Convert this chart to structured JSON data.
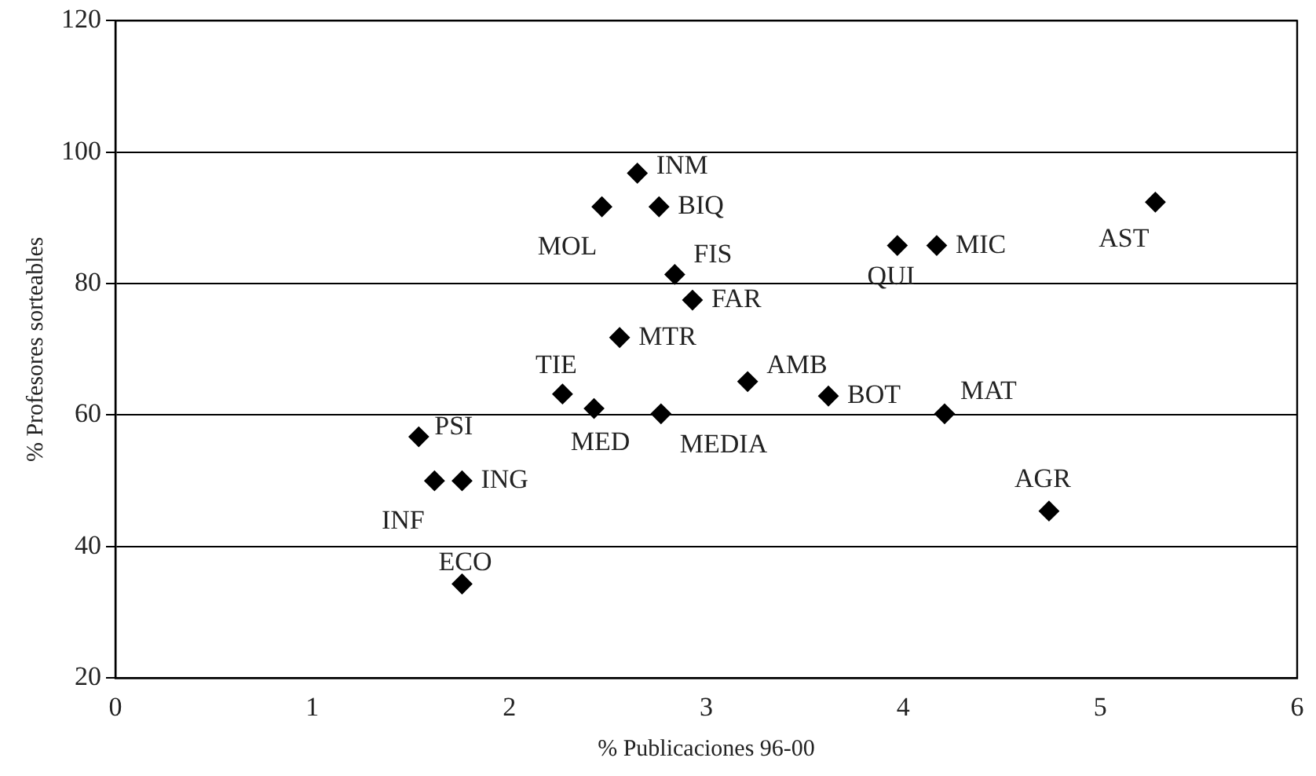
{
  "chart_data": {
    "type": "scatter",
    "xlabel": "% Publicaciones 96-00",
    "ylabel": "% Profesores sorteables",
    "xlim": [
      0,
      6
    ],
    "xticks": [
      0,
      1,
      2,
      3,
      4,
      5,
      6
    ],
    "ylim": [
      20,
      120
    ],
    "yticks": [
      20,
      40,
      60,
      80,
      100,
      120
    ],
    "grid": "y",
    "marker": "diamond",
    "legend": false,
    "series": [
      {
        "color": "#000000",
        "x": [
          2.47,
          2.76,
          2.65,
          2.84,
          2.93,
          2.56,
          2.27,
          2.43,
          2.77,
          3.21,
          3.62,
          3.97,
          4.17,
          5.28,
          4.21,
          4.74,
          1.54,
          1.62,
          1.76,
          1.76
        ],
        "values": [
          91.7,
          91.7,
          96.8,
          81.4,
          77.5,
          71.8,
          63.2,
          61.0,
          60.2,
          65.1,
          62.9,
          85.8,
          85.8,
          92.4,
          60.2,
          45.4,
          56.7,
          50.0,
          50.0,
          34.3
        ]
      }
    ],
    "annotations": [
      {
        "text": "MOL",
        "x": 2.47,
        "y": 91.7
      },
      {
        "text": "BIQ",
        "x": 2.76,
        "y": 91.7
      },
      {
        "text": "INM",
        "x": 2.65,
        "y": 96.8
      },
      {
        "text": "FIS",
        "x": 2.84,
        "y": 81.4
      },
      {
        "text": "FAR",
        "x": 2.93,
        "y": 77.5
      },
      {
        "text": "MTR",
        "x": 2.56,
        "y": 71.8
      },
      {
        "text": "TIE",
        "x": 2.27,
        "y": 63.2
      },
      {
        "text": "MED",
        "x": 2.43,
        "y": 61.0
      },
      {
        "text": "MEDIA",
        "x": 2.77,
        "y": 60.2
      },
      {
        "text": "AMB",
        "x": 3.21,
        "y": 65.1
      },
      {
        "text": "BOT",
        "x": 3.62,
        "y": 62.9
      },
      {
        "text": "QUI",
        "x": 3.97,
        "y": 85.8
      },
      {
        "text": "MIC",
        "x": 4.17,
        "y": 85.8
      },
      {
        "text": "AST",
        "x": 5.28,
        "y": 92.4
      },
      {
        "text": "MAT",
        "x": 4.21,
        "y": 60.2
      },
      {
        "text": "AGR",
        "x": 4.74,
        "y": 45.4
      },
      {
        "text": "PSI",
        "x": 1.54,
        "y": 56.7
      },
      {
        "text": "INF",
        "x": 1.62,
        "y": 50.0
      },
      {
        "text": "ING",
        "x": 1.76,
        "y": 50.0
      },
      {
        "text": "ECO",
        "x": 1.76,
        "y": 34.3
      }
    ]
  }
}
